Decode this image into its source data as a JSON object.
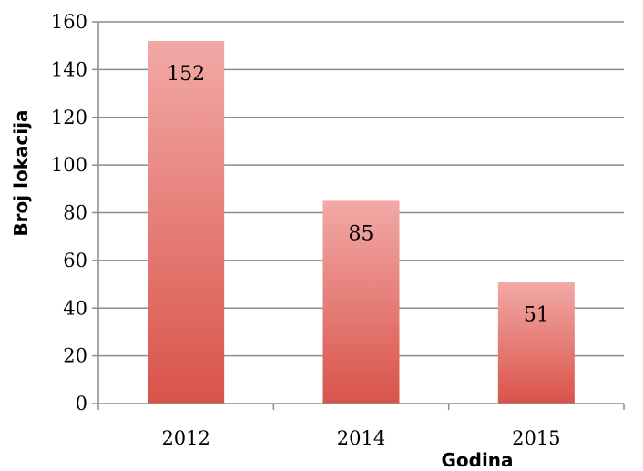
{
  "chart_data": {
    "type": "bar",
    "categories": [
      "2012",
      "2014",
      "2015"
    ],
    "values": [
      152,
      85,
      51
    ],
    "data_labels": [
      "152",
      "85",
      "51"
    ],
    "xlabel": "Godina",
    "ylabel": "Broj lokacija",
    "ylim": [
      0,
      160
    ],
    "y_ticks": [
      "0",
      "20",
      "40",
      "60",
      "80",
      "100",
      "120",
      "140",
      "160"
    ],
    "grid": true,
    "legend": "none",
    "colors": {
      "bar_top": "#f2a9a6",
      "bar_bottom": "#d9534a",
      "grid": "#8c8c8c",
      "axis": "#8c8c8c"
    }
  }
}
